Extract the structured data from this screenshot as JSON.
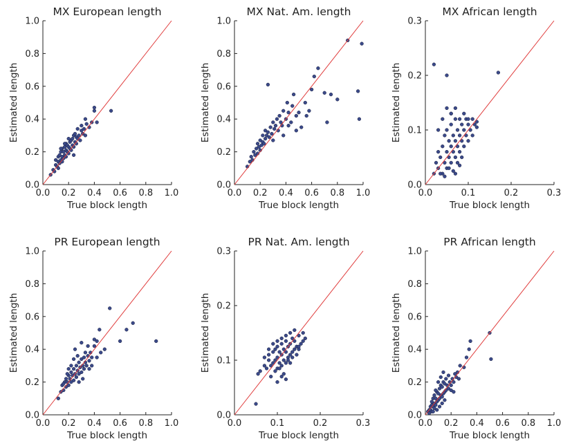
{
  "colors": {
    "point_fill": "#3b4a8a",
    "point_stroke": "#1a1f3d",
    "diagonal": "#e03c3c",
    "axis": "#222222"
  },
  "chart_data": [
    {
      "type": "scatter",
      "title": "MX European length",
      "xlabel": "True block length",
      "ylabel": "Estimated length",
      "xlim": [
        0,
        1.0
      ],
      "ylim": [
        0,
        1.0
      ],
      "xticks": [
        "0.0",
        "0.2",
        "0.4",
        "0.6",
        "0.8",
        "1.0"
      ],
      "yticks": [
        "0.0",
        "0.2",
        "0.4",
        "0.6",
        "0.8",
        "1.0"
      ],
      "diagonal": true,
      "points": {
        "x": [
          0.06,
          0.08,
          0.09,
          0.1,
          0.1,
          0.11,
          0.12,
          0.12,
          0.13,
          0.13,
          0.14,
          0.14,
          0.15,
          0.15,
          0.15,
          0.16,
          0.16,
          0.17,
          0.17,
          0.18,
          0.18,
          0.18,
          0.19,
          0.19,
          0.2,
          0.2,
          0.21,
          0.21,
          0.22,
          0.22,
          0.23,
          0.23,
          0.24,
          0.24,
          0.25,
          0.25,
          0.26,
          0.26,
          0.27,
          0.28,
          0.29,
          0.3,
          0.31,
          0.32,
          0.33,
          0.34,
          0.36,
          0.38,
          0.4,
          0.4,
          0.42,
          0.53,
          0.14,
          0.2,
          0.27,
          0.33,
          0.17,
          0.24,
          0.3,
          0.12
        ],
        "y": [
          0.06,
          0.09,
          0.08,
          0.12,
          0.15,
          0.11,
          0.14,
          0.17,
          0.13,
          0.18,
          0.15,
          0.2,
          0.14,
          0.17,
          0.22,
          0.16,
          0.2,
          0.18,
          0.23,
          0.17,
          0.21,
          0.25,
          0.2,
          0.24,
          0.19,
          0.23,
          0.22,
          0.26,
          0.21,
          0.27,
          0.24,
          0.28,
          0.23,
          0.3,
          0.26,
          0.31,
          0.25,
          0.29,
          0.28,
          0.3,
          0.27,
          0.33,
          0.31,
          0.34,
          0.3,
          0.37,
          0.35,
          0.38,
          0.45,
          0.47,
          0.38,
          0.45,
          0.22,
          0.28,
          0.34,
          0.4,
          0.25,
          0.18,
          0.36,
          0.1
        ]
      }
    },
    {
      "type": "scatter",
      "title": "MX Nat. Am. length",
      "xlabel": "True block length",
      "ylabel": "Estimated length",
      "xlim": [
        0,
        1.0
      ],
      "ylim": [
        0,
        1.0
      ],
      "xticks": [
        "0.0",
        "0.2",
        "0.4",
        "0.6",
        "0.8",
        "1.0"
      ],
      "yticks": [
        "0.0",
        "0.2",
        "0.4",
        "0.6",
        "0.8",
        "1.0"
      ],
      "diagonal": true,
      "points": {
        "x": [
          0.1,
          0.12,
          0.13,
          0.14,
          0.15,
          0.16,
          0.17,
          0.18,
          0.18,
          0.19,
          0.2,
          0.2,
          0.21,
          0.22,
          0.22,
          0.23,
          0.24,
          0.24,
          0.25,
          0.26,
          0.27,
          0.28,
          0.29,
          0.3,
          0.3,
          0.31,
          0.32,
          0.33,
          0.34,
          0.35,
          0.36,
          0.37,
          0.38,
          0.4,
          0.41,
          0.42,
          0.44,
          0.45,
          0.46,
          0.48,
          0.5,
          0.52,
          0.55,
          0.58,
          0.6,
          0.62,
          0.65,
          0.7,
          0.72,
          0.75,
          0.8,
          0.88,
          0.96,
          0.97,
          0.99,
          0.26,
          0.38,
          0.48,
          0.56,
          0.42
        ],
        "y": [
          0.11,
          0.14,
          0.17,
          0.15,
          0.2,
          0.18,
          0.22,
          0.19,
          0.25,
          0.23,
          0.21,
          0.27,
          0.24,
          0.26,
          0.3,
          0.25,
          0.28,
          0.33,
          0.3,
          0.32,
          0.29,
          0.35,
          0.31,
          0.27,
          0.38,
          0.34,
          0.36,
          0.4,
          0.33,
          0.42,
          0.38,
          0.36,
          0.45,
          0.4,
          0.5,
          0.44,
          0.38,
          0.48,
          0.55,
          0.42,
          0.44,
          0.35,
          0.5,
          0.45,
          0.58,
          0.66,
          0.71,
          0.56,
          0.38,
          0.55,
          0.52,
          0.88,
          0.57,
          0.4,
          0.86,
          0.61,
          0.3,
          0.33,
          0.42,
          0.36
        ]
      }
    },
    {
      "type": "scatter",
      "title": "MX African length",
      "xlabel": "True block length",
      "ylabel": "Estimated length",
      "xlim": [
        0,
        0.3
      ],
      "ylim": [
        0,
        0.3
      ],
      "xticks": [
        "0.0",
        "0.1",
        "0.2",
        "0.3"
      ],
      "yticks": [
        "0.0",
        "0.1",
        "0.2",
        "0.3"
      ],
      "diagonal": true,
      "points": {
        "x": [
          0.02,
          0.025,
          0.03,
          0.03,
          0.035,
          0.04,
          0.04,
          0.045,
          0.045,
          0.05,
          0.05,
          0.05,
          0.055,
          0.055,
          0.06,
          0.06,
          0.06,
          0.065,
          0.065,
          0.07,
          0.07,
          0.07,
          0.075,
          0.075,
          0.08,
          0.08,
          0.08,
          0.085,
          0.085,
          0.09,
          0.09,
          0.095,
          0.095,
          0.1,
          0.1,
          0.105,
          0.11,
          0.11,
          0.115,
          0.12,
          0.02,
          0.05,
          0.17,
          0.03,
          0.04,
          0.06,
          0.07,
          0.09,
          0.1,
          0.12,
          0.035,
          0.045,
          0.055,
          0.065,
          0.075,
          0.085,
          0.05,
          0.06,
          0.07,
          0.08
        ],
        "y": [
          0.02,
          0.04,
          0.03,
          0.06,
          0.05,
          0.02,
          0.07,
          0.04,
          0.09,
          0.03,
          0.06,
          0.1,
          0.05,
          0.08,
          0.04,
          0.07,
          0.11,
          0.06,
          0.09,
          0.05,
          0.08,
          0.12,
          0.07,
          0.1,
          0.06,
          0.09,
          0.12,
          0.08,
          0.11,
          0.07,
          0.1,
          0.09,
          0.12,
          0.08,
          0.11,
          0.1,
          0.09,
          0.12,
          0.11,
          0.115,
          0.22,
          0.2,
          0.205,
          0.1,
          0.12,
          0.13,
          0.14,
          0.13,
          0.12,
          0.105,
          0.02,
          0.015,
          0.03,
          0.025,
          0.04,
          0.05,
          0.14,
          0.13,
          0.02,
          0.035
        ]
      }
    },
    {
      "type": "scatter",
      "title": "PR European length",
      "xlabel": "True block length",
      "ylabel": "Estimated length",
      "xlim": [
        0,
        1.0
      ],
      "ylim": [
        0,
        1.0
      ],
      "xticks": [
        "0.0",
        "0.2",
        "0.4",
        "0.6",
        "0.8",
        "1.0"
      ],
      "yticks": [
        "0.0",
        "0.2",
        "0.4",
        "0.6",
        "0.8",
        "1.0"
      ],
      "diagonal": true,
      "points": {
        "x": [
          0.12,
          0.14,
          0.15,
          0.16,
          0.17,
          0.18,
          0.18,
          0.19,
          0.2,
          0.2,
          0.21,
          0.22,
          0.22,
          0.23,
          0.24,
          0.24,
          0.25,
          0.26,
          0.26,
          0.27,
          0.28,
          0.28,
          0.29,
          0.3,
          0.3,
          0.31,
          0.32,
          0.32,
          0.33,
          0.34,
          0.35,
          0.36,
          0.37,
          0.38,
          0.4,
          0.42,
          0.45,
          0.48,
          0.52,
          0.6,
          0.65,
          0.7,
          0.88,
          0.25,
          0.3,
          0.35,
          0.22,
          0.27,
          0.33,
          0.4,
          0.19,
          0.44,
          0.28,
          0.36,
          0.24,
          0.31,
          0.16,
          0.2,
          0.38,
          0.42
        ],
        "y": [
          0.1,
          0.14,
          0.18,
          0.15,
          0.2,
          0.17,
          0.22,
          0.2,
          0.18,
          0.24,
          0.22,
          0.2,
          0.26,
          0.24,
          0.21,
          0.28,
          0.25,
          0.23,
          0.3,
          0.27,
          0.25,
          0.32,
          0.29,
          0.26,
          0.34,
          0.3,
          0.28,
          0.35,
          0.32,
          0.3,
          0.36,
          0.33,
          0.38,
          0.35,
          0.42,
          0.45,
          0.38,
          0.4,
          0.65,
          0.45,
          0.52,
          0.56,
          0.45,
          0.4,
          0.44,
          0.42,
          0.3,
          0.36,
          0.38,
          0.46,
          0.25,
          0.52,
          0.2,
          0.28,
          0.34,
          0.22,
          0.19,
          0.28,
          0.3,
          0.35
        ]
      }
    },
    {
      "type": "scatter",
      "title": "PR Nat. Am. length",
      "xlabel": "True block length",
      "ylabel": "Estimated length",
      "xlim": [
        0,
        0.3
      ],
      "ylim": [
        0,
        0.3
      ],
      "xticks": [
        "0.0",
        "0.1",
        "0.2",
        "0.3"
      ],
      "yticks": [
        "0.0",
        "0.1",
        "0.2",
        "0.3"
      ],
      "diagonal": true,
      "points": {
        "x": [
          0.05,
          0.055,
          0.06,
          0.07,
          0.075,
          0.08,
          0.08,
          0.085,
          0.09,
          0.09,
          0.095,
          0.095,
          0.1,
          0.1,
          0.1,
          0.105,
          0.105,
          0.11,
          0.11,
          0.11,
          0.115,
          0.115,
          0.12,
          0.12,
          0.12,
          0.125,
          0.125,
          0.13,
          0.13,
          0.135,
          0.135,
          0.14,
          0.14,
          0.145,
          0.15,
          0.15,
          0.155,
          0.16,
          0.16,
          0.165,
          0.085,
          0.095,
          0.105,
          0.115,
          0.125,
          0.135,
          0.145,
          0.09,
          0.1,
          0.11,
          0.12,
          0.13,
          0.14,
          0.07,
          0.08,
          0.15,
          0.12,
          0.1,
          0.13,
          0.11
        ],
        "y": [
          0.02,
          0.075,
          0.08,
          0.09,
          0.085,
          0.1,
          0.11,
          0.09,
          0.095,
          0.115,
          0.1,
          0.12,
          0.085,
          0.105,
          0.125,
          0.095,
          0.115,
          0.09,
          0.11,
          0.13,
          0.1,
          0.12,
          0.095,
          0.115,
          0.135,
          0.105,
          0.125,
          0.11,
          0.13,
          0.115,
          0.14,
          0.12,
          0.135,
          0.125,
          0.12,
          0.145,
          0.13,
          0.135,
          0.15,
          0.14,
          0.07,
          0.08,
          0.085,
          0.075,
          0.1,
          0.105,
          0.11,
          0.13,
          0.135,
          0.14,
          0.145,
          0.15,
          0.155,
          0.105,
          0.12,
          0.125,
          0.065,
          0.06,
          0.095,
          0.07
        ]
      }
    },
    {
      "type": "scatter",
      "title": "PR African length",
      "xlabel": "True block length",
      "ylabel": "Estimated length",
      "xlim": [
        0,
        1.0
      ],
      "ylim": [
        0,
        1.0
      ],
      "xticks": [
        "0.0",
        "0.2",
        "0.4",
        "0.6",
        "0.8",
        "1.0"
      ],
      "yticks": [
        "0.0",
        "0.2",
        "0.4",
        "0.6",
        "0.8",
        "1.0"
      ],
      "diagonal": true,
      "points": {
        "x": [
          0.02,
          0.03,
          0.04,
          0.04,
          0.05,
          0.05,
          0.06,
          0.06,
          0.07,
          0.07,
          0.08,
          0.08,
          0.09,
          0.09,
          0.1,
          0.1,
          0.11,
          0.11,
          0.12,
          0.12,
          0.13,
          0.13,
          0.14,
          0.14,
          0.15,
          0.15,
          0.16,
          0.16,
          0.17,
          0.18,
          0.18,
          0.19,
          0.2,
          0.21,
          0.22,
          0.23,
          0.24,
          0.25,
          0.27,
          0.3,
          0.32,
          0.35,
          0.5,
          0.51,
          0.05,
          0.07,
          0.09,
          0.11,
          0.13,
          0.15,
          0.03,
          0.06,
          0.08,
          0.1,
          0.12,
          0.14,
          0.2,
          0.22,
          0.26,
          0.34
        ],
        "y": [
          0.02,
          0.03,
          0.05,
          0.03,
          0.06,
          0.08,
          0.05,
          0.1,
          0.07,
          0.12,
          0.06,
          0.1,
          0.08,
          0.14,
          0.09,
          0.13,
          0.1,
          0.16,
          0.12,
          0.18,
          0.11,
          0.17,
          0.13,
          0.2,
          0.14,
          0.19,
          0.15,
          0.22,
          0.18,
          0.16,
          0.24,
          0.2,
          0.18,
          0.22,
          0.2,
          0.25,
          0.23,
          0.26,
          0.3,
          0.29,
          0.35,
          0.45,
          0.5,
          0.34,
          0.02,
          0.04,
          0.03,
          0.05,
          0.07,
          0.09,
          0.01,
          0.02,
          0.15,
          0.2,
          0.23,
          0.26,
          0.15,
          0.14,
          0.22,
          0.4
        ]
      }
    }
  ]
}
